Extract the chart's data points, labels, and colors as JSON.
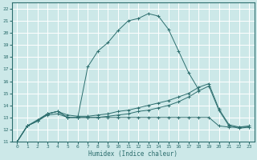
{
  "title": "",
  "xlabel": "Humidex (Indice chaleur)",
  "bg_color": "#cce8e8",
  "grid_color": "#ffffff",
  "line_color": "#2d6e6e",
  "xlim": [
    -0.5,
    23.5
  ],
  "ylim": [
    11,
    22.5
  ],
  "yticks": [
    11,
    12,
    13,
    14,
    15,
    16,
    17,
    18,
    19,
    20,
    21,
    22
  ],
  "xticks": [
    0,
    1,
    2,
    3,
    4,
    5,
    6,
    7,
    8,
    9,
    10,
    11,
    12,
    13,
    14,
    15,
    16,
    17,
    18,
    19,
    20,
    21,
    22,
    23
  ],
  "line1_x": [
    0,
    1,
    2,
    3,
    4,
    5,
    6,
    7,
    8,
    9,
    10,
    11,
    12,
    13,
    14,
    15,
    16,
    17,
    18
  ],
  "line1_y": [
    11.0,
    12.3,
    12.7,
    13.3,
    13.5,
    13.0,
    13.0,
    17.2,
    18.5,
    19.2,
    20.2,
    21.0,
    21.2,
    21.6,
    21.4,
    20.3,
    18.5,
    16.7,
    15.3
  ],
  "line2_x": [
    0,
    1,
    2,
    3,
    4,
    5,
    6,
    7,
    8,
    9,
    10,
    11,
    12,
    13,
    14,
    15,
    16,
    17,
    18,
    19,
    20,
    21,
    22,
    23
  ],
  "line2_y": [
    11.0,
    12.3,
    12.7,
    13.3,
    13.5,
    13.0,
    13.0,
    13.0,
    13.0,
    13.0,
    13.0,
    13.0,
    13.0,
    13.0,
    13.0,
    13.0,
    13.0,
    13.0,
    13.0,
    13.0,
    12.3,
    12.2,
    12.2,
    12.2
  ],
  "line3_x": [
    0,
    1,
    2,
    3,
    4,
    5,
    6,
    7,
    8,
    9,
    10,
    11,
    12,
    13,
    14,
    15,
    16,
    17,
    18,
    19,
    20,
    21,
    22,
    23
  ],
  "line3_y": [
    11.0,
    12.3,
    12.7,
    13.2,
    13.3,
    13.0,
    13.0,
    13.0,
    13.0,
    13.1,
    13.2,
    13.3,
    13.5,
    13.6,
    13.8,
    14.0,
    14.3,
    14.7,
    15.2,
    15.6,
    13.6,
    12.3,
    12.1,
    12.2
  ],
  "line4_x": [
    0,
    1,
    2,
    3,
    4,
    5,
    6,
    7,
    8,
    9,
    10,
    11,
    12,
    13,
    14,
    15,
    16,
    17,
    18,
    19,
    20,
    21,
    22,
    23
  ],
  "line4_y": [
    11.0,
    12.3,
    12.8,
    13.3,
    13.5,
    13.2,
    13.1,
    13.1,
    13.2,
    13.3,
    13.5,
    13.6,
    13.8,
    14.0,
    14.2,
    14.4,
    14.7,
    15.0,
    15.5,
    15.8,
    13.7,
    12.4,
    12.2,
    12.3
  ]
}
